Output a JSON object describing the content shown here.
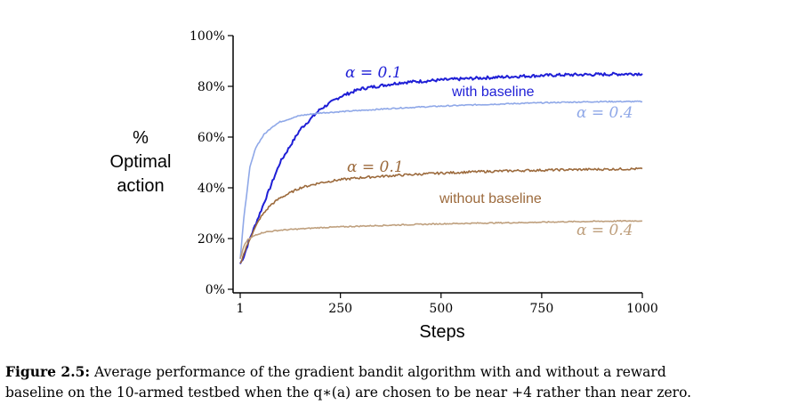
{
  "chart_data": {
    "type": "line",
    "xlabel": "Steps",
    "ylabel_lines": [
      "%",
      "Optimal",
      "action"
    ],
    "xlim": [
      1,
      1000
    ],
    "ylim": [
      0,
      100
    ],
    "xticks": [
      {
        "value": 1,
        "label": "1"
      },
      {
        "value": 250,
        "label": "250"
      },
      {
        "value": 500,
        "label": "500"
      },
      {
        "value": 750,
        "label": "750"
      },
      {
        "value": 1000,
        "label": "1000"
      }
    ],
    "yticks": [
      {
        "value": 0,
        "label": "0%"
      },
      {
        "value": 20,
        "label": "20%"
      },
      {
        "value": 40,
        "label": "40%"
      },
      {
        "value": 60,
        "label": "60%"
      },
      {
        "value": 80,
        "label": "80%"
      },
      {
        "value": 100,
        "label": "100%"
      }
    ],
    "grid": false,
    "series": [
      {
        "color": "#1f1fd6",
        "x": [
          1,
          10,
          25,
          50,
          75,
          100,
          150,
          200,
          250,
          300,
          400,
          500,
          600,
          700,
          800,
          900,
          1000
        ],
        "y": [
          10,
          13,
          20,
          30,
          40,
          50,
          63,
          71,
          76,
          79,
          81.5,
          82.5,
          83.3,
          84,
          84.5,
          84.7,
          85
        ]
      },
      {
        "color": "#8fa8e8",
        "x": [
          1,
          10,
          25,
          40,
          60,
          80,
          100,
          150,
          200,
          300,
          400,
          500,
          600,
          700,
          800,
          900,
          1000
        ],
        "y": [
          12,
          28,
          48,
          56,
          61,
          64,
          66,
          68.5,
          69.5,
          70.5,
          71.5,
          72.2,
          72.8,
          73.3,
          73.7,
          74,
          74
        ]
      },
      {
        "color": "#9c6a3c",
        "x": [
          1,
          10,
          25,
          50,
          75,
          100,
          150,
          200,
          250,
          300,
          400,
          500,
          600,
          700,
          800,
          900,
          1000
        ],
        "y": [
          10,
          14,
          20,
          28,
          33,
          36,
          40,
          42,
          43.2,
          44,
          45,
          45.8,
          46.4,
          46.8,
          47.1,
          47.3,
          47.5
        ]
      },
      {
        "color": "#bfa07e",
        "x": [
          1,
          10,
          20,
          40,
          60,
          100,
          200,
          300,
          400,
          500,
          600,
          700,
          800,
          900,
          1000
        ],
        "y": [
          12,
          17,
          19.5,
          21.5,
          22.5,
          23.3,
          24.3,
          24.9,
          25.4,
          25.8,
          26.1,
          26.3,
          26.6,
          26.8,
          27
        ]
      }
    ],
    "annotations": {
      "with_alpha": "α = 0.1",
      "with_label": "with baseline",
      "with_alpha_low": "α = 0.4",
      "without_alpha": "α = 0.1",
      "without_label": "without baseline",
      "without_alpha_low": "α = 0.4"
    }
  },
  "caption": {
    "label": "Figure 2.5:",
    "text_line1": " Average performance of the gradient bandit algorithm with and without a reward",
    "text_line2": "baseline on the 10-armed testbed when the q∗(a) are chosen to be near +4 rather than near zero."
  }
}
